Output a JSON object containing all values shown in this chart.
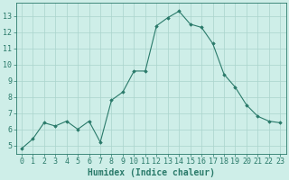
{
  "x": [
    0,
    1,
    2,
    3,
    4,
    5,
    6,
    7,
    8,
    9,
    10,
    11,
    12,
    13,
    14,
    15,
    16,
    17,
    18,
    19,
    20,
    21,
    22,
    23
  ],
  "y": [
    4.8,
    5.4,
    6.4,
    6.2,
    6.5,
    6.0,
    6.5,
    5.2,
    7.8,
    8.3,
    9.6,
    9.6,
    12.4,
    12.9,
    13.3,
    12.5,
    12.3,
    11.3,
    9.4,
    8.6,
    7.5,
    6.8,
    6.5,
    6.4
  ],
  "xlabel": "Humidex (Indice chaleur)",
  "ylabel": "",
  "xlim": [
    -0.5,
    23.5
  ],
  "ylim": [
    4.5,
    13.8
  ],
  "yticks": [
    5,
    6,
    7,
    8,
    9,
    10,
    11,
    12,
    13
  ],
  "xticks": [
    0,
    1,
    2,
    3,
    4,
    5,
    6,
    7,
    8,
    9,
    10,
    11,
    12,
    13,
    14,
    15,
    16,
    17,
    18,
    19,
    20,
    21,
    22,
    23
  ],
  "line_color": "#2a7a6a",
  "marker_color": "#2a7a6a",
  "bg_color": "#ceeee8",
  "grid_color_major": "#aad4cc",
  "grid_color_minor": "#c0e4de",
  "axis_color": "#2a7a6a",
  "tick_color": "#2a7a6a",
  "label_color": "#2a7a6a",
  "font_family": "monospace",
  "tick_fontsize": 6.0,
  "xlabel_fontsize": 7.0
}
